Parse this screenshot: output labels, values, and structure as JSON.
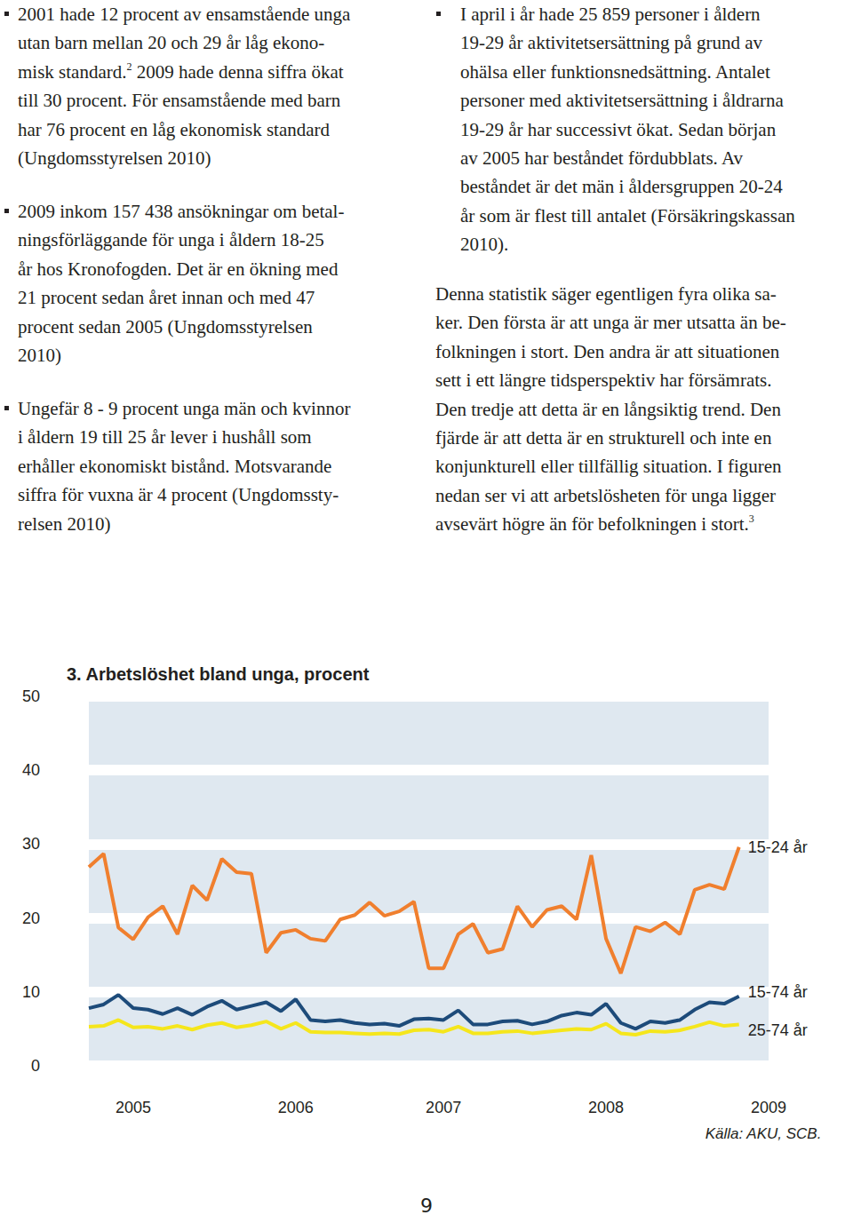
{
  "page": {
    "left_column": [
      {
        "bullet": true,
        "lines": [
          "2001 hade 12 procent av ensamstående unga",
          "utan barn mellan 20 och 29 år låg ekono-",
          [
            "misk standard.",
            {
              "sup": "2"
            },
            " 2009 hade denna siffra ökat"
          ],
          "till 30 procent. För ensamstående med barn",
          "har 76 procent en låg ekonomisk standard",
          "(Ungdomsstyrelsen 2010)"
        ]
      },
      {
        "bullet": true,
        "lines": [
          "2009 inkom 157 438 ansökningar om betal-",
          "ningsförläggande för unga i åldern 18-25",
          "år hos Kronofogden. Det är en ökning med",
          "21 procent sedan året innan och med 47",
          "procent sedan 2005 (Ungdomsstyrelsen",
          "2010)"
        ]
      },
      {
        "bullet": true,
        "lines": [
          "Ungefär 8 - 9 procent unga män och kvinnor",
          "i åldern 19 till 25 år lever i hushåll som",
          "erhåller ekonomiskt bistånd. Motsvarande",
          "siffra för vuxna är 4 procent (Ungdomssty-",
          "relsen 2010)"
        ]
      }
    ],
    "right_column": [
      {
        "bullet": true,
        "lines": [
          "I april i år hade 25 859 personer i åldern",
          "19-29 år aktivitetsersättning på grund av",
          "ohälsa eller funktionsnedsättning. Antalet",
          "personer med aktivitetsersättning i åldrarna",
          "19-29 år har successivt ökat. Sedan början",
          "av 2005 har beståndet fördubblats. Av",
          "beståndet är det män i åldersgruppen 20-24",
          "år som är flest till antalet (Försäkringskassan",
          "2010)."
        ]
      },
      {
        "bullet": false,
        "lines": [
          "Denna statistik säger egentligen fyra olika sa-",
          "ker. Den första är att unga är mer utsatta än be-",
          "folkningen i stort. Den andra är att situationen",
          "sett i ett längre tidsperspektiv har försämrats.",
          "Den tredje att detta är en långsiktig trend. Den",
          "fjärde är att detta är en strukturell och inte en",
          "konjunkturell eller tillfällig situation. I figuren",
          "nedan ser vi att arbetslösheten för unga ligger",
          [
            "avsevärt högre än för befolkningen i stort.",
            {
              "sup": "3"
            }
          ]
        ]
      }
    ],
    "page_number": "9"
  },
  "chart_data": {
    "type": "line",
    "title": "3. Arbetslöshet bland unga, procent",
    "source": "Källa: AKU, SCB.",
    "categories": [
      null,
      null,
      null,
      "2005",
      null,
      null,
      null,
      null,
      null,
      null,
      null,
      null,
      null,
      null,
      "2006",
      null,
      null,
      null,
      null,
      null,
      null,
      null,
      null,
      null,
      "2007",
      null,
      null,
      null,
      null,
      null,
      null,
      null,
      null,
      null,
      null,
      "2008",
      null,
      null,
      null,
      null,
      null,
      null,
      null,
      null,
      null,
      null,
      "2009"
    ],
    "series": [
      {
        "name": "15-24 år",
        "color": "#f07f2e",
        "values": [
          26.9,
          28.7,
          18.7,
          17.1,
          20.1,
          21.6,
          17.8,
          24.4,
          22.4,
          28.0,
          26.2,
          26.0,
          15.3,
          18.0,
          18.4,
          17.2,
          16.9,
          19.8,
          20.4,
          22.1,
          20.3,
          20.9,
          22.2,
          13.2,
          13.2,
          17.8,
          19.2,
          15.3,
          15.8,
          21.6,
          18.8,
          21.1,
          21.6,
          19.8,
          28.5,
          17.2,
          12.5,
          18.8,
          18.2,
          19.4,
          17.8,
          23.8,
          24.5,
          23.9,
          29.6,
          null,
          null
        ]
      },
      {
        "name": "15-74 år",
        "color": "#1d4b7a",
        "values": [
          7.8,
          8.3,
          9.6,
          7.8,
          7.6,
          7.0,
          7.8,
          6.9,
          8.0,
          8.8,
          7.6,
          8.1,
          8.6,
          7.4,
          9.0,
          6.2,
          6.0,
          6.2,
          5.8,
          5.6,
          5.7,
          5.4,
          6.3,
          6.4,
          6.2,
          7.5,
          5.6,
          5.6,
          6.0,
          6.1,
          5.6,
          6.0,
          6.8,
          7.2,
          6.9,
          8.4,
          5.8,
          5.0,
          6.0,
          5.8,
          6.2,
          7.6,
          8.6,
          8.4,
          9.4,
          null,
          null
        ]
      },
      {
        "name": "25-74 år",
        "color": "#f5e61c",
        "values": [
          5.3,
          5.4,
          6.2,
          5.2,
          5.3,
          5.0,
          5.4,
          4.9,
          5.5,
          5.8,
          5.2,
          5.5,
          6.0,
          5.0,
          5.8,
          4.6,
          4.5,
          4.5,
          4.4,
          4.3,
          4.4,
          4.3,
          4.8,
          4.9,
          4.6,
          5.3,
          4.4,
          4.4,
          4.6,
          4.7,
          4.4,
          4.6,
          4.8,
          5.0,
          4.9,
          5.7,
          4.4,
          4.2,
          4.7,
          4.6,
          4.8,
          5.3,
          5.9,
          5.4,
          5.6,
          null,
          null
        ]
      }
    ],
    "ylim": [
      0,
      50
    ],
    "yticks": [
      0,
      10,
      20,
      30,
      40,
      50
    ],
    "grid": true
  }
}
